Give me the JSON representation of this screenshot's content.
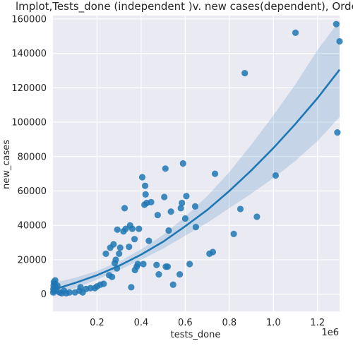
{
  "chart_data": {
    "type": "scatter",
    "title": "lmplot,Tests_done (independent )v. new cases(dependent), Orde",
    "xlabel": "tests_done",
    "ylabel": "new_cases",
    "x_offset_label": "1e6",
    "xlim": [
      0,
      1300000
    ],
    "ylim": [
      -10000,
      162000
    ],
    "xticks": [
      200000,
      400000,
      600000,
      800000,
      1000000,
      1200000
    ],
    "xtick_labels": [
      "0.2",
      "0.4",
      "0.6",
      "0.8",
      "1.0",
      "1.2"
    ],
    "yticks": [
      0,
      20000,
      40000,
      60000,
      80000,
      100000,
      120000,
      140000,
      160000
    ],
    "ytick_labels": [
      "0",
      "20000",
      "40000",
      "60000",
      "80000",
      "100000",
      "120000",
      "140000",
      "160000"
    ],
    "grid": true,
    "colors": {
      "background": "#EAEAF2",
      "grid": "#FFFFFF",
      "point": "#1F77B4",
      "line": "#1F77B4",
      "band": "#1F77B4"
    },
    "points": [
      {
        "x": 1000,
        "y": 1000
      },
      {
        "x": 2000,
        "y": 3000
      },
      {
        "x": 3000,
        "y": 5000
      },
      {
        "x": 4000,
        "y": 7000
      },
      {
        "x": 5000,
        "y": 2000
      },
      {
        "x": 8000,
        "y": 6000
      },
      {
        "x": 10000,
        "y": 8000
      },
      {
        "x": 12000,
        "y": 4000
      },
      {
        "x": 15000,
        "y": 2000
      },
      {
        "x": 20000,
        "y": 5000
      },
      {
        "x": 30000,
        "y": 1000
      },
      {
        "x": 40000,
        "y": 500
      },
      {
        "x": 50000,
        "y": 2000
      },
      {
        "x": 60000,
        "y": 500
      },
      {
        "x": 75000,
        "y": 1000
      },
      {
        "x": 100000,
        "y": 1000
      },
      {
        "x": 120000,
        "y": 2000
      },
      {
        "x": 125000,
        "y": 4000
      },
      {
        "x": 135000,
        "y": 1000
      },
      {
        "x": 150000,
        "y": 3000
      },
      {
        "x": 170000,
        "y": 3500
      },
      {
        "x": 190000,
        "y": 3500
      },
      {
        "x": 200000,
        "y": 4500
      },
      {
        "x": 215000,
        "y": 5500
      },
      {
        "x": 230000,
        "y": 6000
      },
      {
        "x": 240000,
        "y": 23500
      },
      {
        "x": 255000,
        "y": 11000
      },
      {
        "x": 260000,
        "y": 27000
      },
      {
        "x": 268000,
        "y": 10000
      },
      {
        "x": 275000,
        "y": 29000
      },
      {
        "x": 280000,
        "y": 18000
      },
      {
        "x": 285000,
        "y": 20000
      },
      {
        "x": 290000,
        "y": 15000
      },
      {
        "x": 292000,
        "y": 37500
      },
      {
        "x": 300000,
        "y": 23500
      },
      {
        "x": 305000,
        "y": 27000
      },
      {
        "x": 320000,
        "y": 36500
      },
      {
        "x": 325000,
        "y": 50000
      },
      {
        "x": 330000,
        "y": 38000
      },
      {
        "x": 345000,
        "y": 27500
      },
      {
        "x": 350000,
        "y": 40000
      },
      {
        "x": 355000,
        "y": 4000
      },
      {
        "x": 360000,
        "y": 38000
      },
      {
        "x": 370000,
        "y": 32000
      },
      {
        "x": 372000,
        "y": 14000
      },
      {
        "x": 380000,
        "y": 16000
      },
      {
        "x": 385000,
        "y": 17500
      },
      {
        "x": 390000,
        "y": 38000
      },
      {
        "x": 405000,
        "y": 68000
      },
      {
        "x": 410000,
        "y": 17500
      },
      {
        "x": 415000,
        "y": 52000
      },
      {
        "x": 418000,
        "y": 63000
      },
      {
        "x": 420000,
        "y": 58000
      },
      {
        "x": 425000,
        "y": 53000
      },
      {
        "x": 435000,
        "y": 31000
      },
      {
        "x": 445000,
        "y": 53500
      },
      {
        "x": 470000,
        "y": 17000
      },
      {
        "x": 475000,
        "y": 46000
      },
      {
        "x": 480000,
        "y": 11500
      },
      {
        "x": 505000,
        "y": 56500
      },
      {
        "x": 510000,
        "y": 73000
      },
      {
        "x": 512000,
        "y": 16000
      },
      {
        "x": 520000,
        "y": 16000
      },
      {
        "x": 525000,
        "y": 37000
      },
      {
        "x": 535000,
        "y": 48000
      },
      {
        "x": 545000,
        "y": 5500
      },
      {
        "x": 575000,
        "y": 11500
      },
      {
        "x": 580000,
        "y": 50000
      },
      {
        "x": 585000,
        "y": 53000
      },
      {
        "x": 590000,
        "y": 76000
      },
      {
        "x": 600000,
        "y": 44000
      },
      {
        "x": 605000,
        "y": 57000
      },
      {
        "x": 620000,
        "y": 17500
      },
      {
        "x": 645000,
        "y": 51000
      },
      {
        "x": 648000,
        "y": 39000
      },
      {
        "x": 710000,
        "y": 23500
      },
      {
        "x": 725000,
        "y": 24500
      },
      {
        "x": 735000,
        "y": 70000
      },
      {
        "x": 820000,
        "y": 35000
      },
      {
        "x": 850000,
        "y": 49500
      },
      {
        "x": 870000,
        "y": 128500
      },
      {
        "x": 925000,
        "y": 45000
      },
      {
        "x": 1010000,
        "y": 69000
      },
      {
        "x": 1100000,
        "y": 152000
      },
      {
        "x": 1285000,
        "y": 157000
      },
      {
        "x": 1290000,
        "y": 94000
      },
      {
        "x": 1300000,
        "y": 147000
      }
    ],
    "fit_line": [
      {
        "x": 0,
        "y": 2500
      },
      {
        "x": 100000,
        "y": 6500
      },
      {
        "x": 200000,
        "y": 11000
      },
      {
        "x": 300000,
        "y": 16500
      },
      {
        "x": 400000,
        "y": 23000
      },
      {
        "x": 500000,
        "y": 30500
      },
      {
        "x": 600000,
        "y": 39500
      },
      {
        "x": 700000,
        "y": 49000
      },
      {
        "x": 800000,
        "y": 60000
      },
      {
        "x": 900000,
        "y": 72000
      },
      {
        "x": 1000000,
        "y": 85000
      },
      {
        "x": 1100000,
        "y": 99000
      },
      {
        "x": 1200000,
        "y": 114000
      },
      {
        "x": 1300000,
        "y": 130500
      }
    ],
    "ci_upper": [
      {
        "x": 0,
        "y": 6500
      },
      {
        "x": 100000,
        "y": 9500
      },
      {
        "x": 200000,
        "y": 13500
      },
      {
        "x": 300000,
        "y": 19000
      },
      {
        "x": 400000,
        "y": 26000
      },
      {
        "x": 500000,
        "y": 34500
      },
      {
        "x": 600000,
        "y": 45000
      },
      {
        "x": 700000,
        "y": 57000
      },
      {
        "x": 800000,
        "y": 71000
      },
      {
        "x": 900000,
        "y": 87000
      },
      {
        "x": 1000000,
        "y": 104000
      },
      {
        "x": 1100000,
        "y": 122000
      },
      {
        "x": 1200000,
        "y": 142000
      },
      {
        "x": 1300000,
        "y": 159000
      }
    ],
    "ci_lower": [
      {
        "x": 0,
        "y": -1500
      },
      {
        "x": 100000,
        "y": 3500
      },
      {
        "x": 200000,
        "y": 8500
      },
      {
        "x": 300000,
        "y": 14000
      },
      {
        "x": 400000,
        "y": 20000
      },
      {
        "x": 500000,
        "y": 26500
      },
      {
        "x": 600000,
        "y": 34000
      },
      {
        "x": 700000,
        "y": 41500
      },
      {
        "x": 800000,
        "y": 50000
      },
      {
        "x": 900000,
        "y": 58500
      },
      {
        "x": 1000000,
        "y": 67500
      },
      {
        "x": 1100000,
        "y": 77500
      },
      {
        "x": 1200000,
        "y": 89000
      },
      {
        "x": 1300000,
        "y": 103000
      }
    ]
  }
}
